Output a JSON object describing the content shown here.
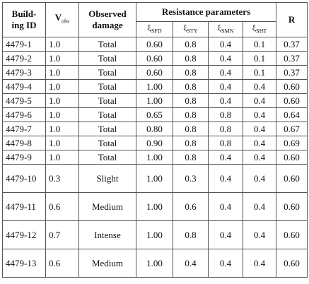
{
  "table": {
    "header": {
      "building_id": [
        "Build-",
        "ing ID"
      ],
      "v_obs": {
        "text": "V",
        "sub": "obs"
      },
      "observed_damage": [
        "Observed",
        "damage"
      ],
      "resistance": "Resistance parameters",
      "r": "R",
      "params": [
        {
          "text": "ξ",
          "sub": "SFD"
        },
        {
          "text": "ξ",
          "sub": "STY"
        },
        {
          "text": "ξ",
          "sub": "SMN"
        },
        {
          "text": "ξ",
          "sub": "SHT"
        }
      ]
    },
    "rows": [
      [
        "4479-1",
        "1.0",
        "Total",
        "0.60",
        "0.8",
        "0.4",
        "0.1",
        "0.37"
      ],
      [
        "4479-2",
        "1.0",
        "Total",
        "0.60",
        "0.8",
        "0.4",
        "0.1",
        "0.37"
      ],
      [
        "4479-3",
        "1.0",
        "Total",
        "0.60",
        "0.8",
        "0.4",
        "0.1",
        "0.37"
      ],
      [
        "4479-4",
        "1.0",
        "Total",
        "1.00",
        "0.8",
        "0.4",
        "0.4",
        "0.60"
      ],
      [
        "4479-5",
        "1.0",
        "Total",
        "1.00",
        "0.8",
        "0.4",
        "0.4",
        "0.60"
      ],
      [
        "4479-6",
        "1.0",
        "Total",
        "0.65",
        "0.8",
        "0.8",
        "0.4",
        "0.64"
      ],
      [
        "4479-7",
        "1.0",
        "Total",
        "0.80",
        "0.8",
        "0.8",
        "0.4",
        "0.67"
      ],
      [
        "4479-8",
        "1.0",
        "Total",
        "0.90",
        "0.8",
        "0.8",
        "0.4",
        "0.69"
      ],
      [
        "4479-9",
        "1.0",
        "Total",
        "1.00",
        "0.8",
        "0.4",
        "0.4",
        "0.60"
      ],
      [
        "4479-10",
        "0.3",
        "Slight",
        "1.00",
        "0.3",
        "0.4",
        "0.4",
        "0.60"
      ],
      [
        "4479-11",
        "0.6",
        "Medium",
        "1.00",
        "0.6",
        "0.4",
        "0.4",
        "0.60"
      ],
      [
        "4479-12",
        "0.7",
        "Intense",
        "1.00",
        "0.8",
        "0.4",
        "0.4",
        "0.60"
      ],
      [
        "4479-13",
        "0.6",
        "Medium",
        "1.00",
        "0.4",
        "0.4",
        "0.4",
        "0.60"
      ]
    ]
  }
}
